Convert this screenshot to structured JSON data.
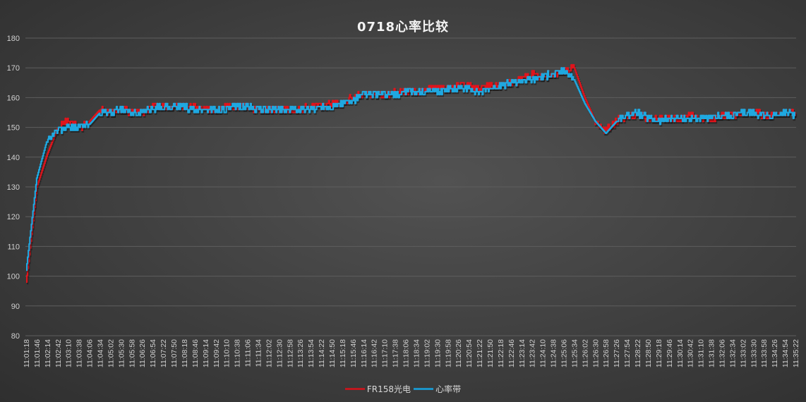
{
  "chart_data": {
    "type": "line",
    "title": "0718心率比较",
    "xlabel": "",
    "ylabel": "",
    "ylim": [
      80,
      180
    ],
    "yticks": [
      80,
      90,
      100,
      110,
      120,
      130,
      140,
      150,
      160,
      170,
      180
    ],
    "grid": true,
    "legend_position": "bottom",
    "categories": [
      "11:01:18",
      "11:01:46",
      "11:02:14",
      "11:02:42",
      "11:03:10",
      "11:03:38",
      "11:04:06",
      "11:04:34",
      "11:05:02",
      "11:05:30",
      "11:05:58",
      "11:06:26",
      "11:06:54",
      "11:07:22",
      "11:07:50",
      "11:08:18",
      "11:08:46",
      "11:09:14",
      "11:09:42",
      "11:10:10",
      "11:10:38",
      "11:11:06",
      "11:11:34",
      "11:12:02",
      "11:12:30",
      "11:12:58",
      "11:13:26",
      "11:13:54",
      "11:14:22",
      "11:14:50",
      "11:15:18",
      "11:15:46",
      "11:16:14",
      "11:16:42",
      "11:17:10",
      "11:17:38",
      "11:18:06",
      "11:18:34",
      "11:19:02",
      "11:19:30",
      "11:19:58",
      "11:20:26",
      "11:20:54",
      "11:21:22",
      "11:21:50",
      "11:22:18",
      "11:22:46",
      "11:23:14",
      "11:23:42",
      "11:24:10",
      "11:24:38",
      "11:25:06",
      "11:25:34",
      "11:26:02",
      "11:26:30",
      "11:26:58",
      "11:27:26",
      "11:27:54",
      "11:28:22",
      "11:28:50",
      "11:29:18",
      "11:29:46",
      "11:30:14",
      "11:30:42",
      "11:31:10",
      "11:31:38",
      "11:32:06",
      "11:32:34",
      "11:33:02",
      "11:33:30",
      "11:33:58",
      "11:34:26",
      "11:34:54",
      "11:35:22"
    ],
    "series": [
      {
        "name": "FR158光电",
        "color": "#e0141c",
        "values": [
          98,
          130,
          141,
          150,
          152,
          150,
          152,
          156,
          155,
          156,
          155,
          155,
          157,
          157,
          157,
          157,
          157,
          156,
          156,
          157,
          157,
          157,
          156,
          156,
          156,
          156,
          156,
          157,
          157,
          158,
          158,
          160,
          161,
          161,
          161,
          162,
          162,
          162,
          163,
          163,
          163,
          164,
          164,
          163,
          164,
          164,
          165,
          166,
          168,
          167,
          168,
          169,
          170,
          160,
          152,
          149,
          152,
          154,
          154,
          153,
          153,
          153,
          153,
          154,
          153,
          153,
          154,
          154,
          155,
          155,
          154,
          154,
          155,
          155
        ]
      },
      {
        "name": "心率带",
        "color": "#1fa8e0",
        "values": [
          102,
          133,
          146,
          149,
          150,
          150,
          151,
          155,
          155,
          156,
          155,
          155,
          156,
          157,
          157,
          157,
          156,
          156,
          156,
          156,
          157,
          157,
          156,
          156,
          156,
          156,
          156,
          156,
          157,
          157,
          158,
          159,
          161,
          161,
          161,
          161,
          162,
          162,
          162,
          162,
          163,
          163,
          163,
          162,
          163,
          164,
          165,
          166,
          166,
          167,
          168,
          169,
          166,
          158,
          152,
          148,
          152,
          154,
          155,
          153,
          152,
          153,
          153,
          153,
          153,
          153,
          154,
          154,
          155,
          155,
          154,
          154,
          155,
          154
        ]
      }
    ]
  },
  "legend": {
    "items": [
      "FR158光电",
      "心率带"
    ]
  }
}
